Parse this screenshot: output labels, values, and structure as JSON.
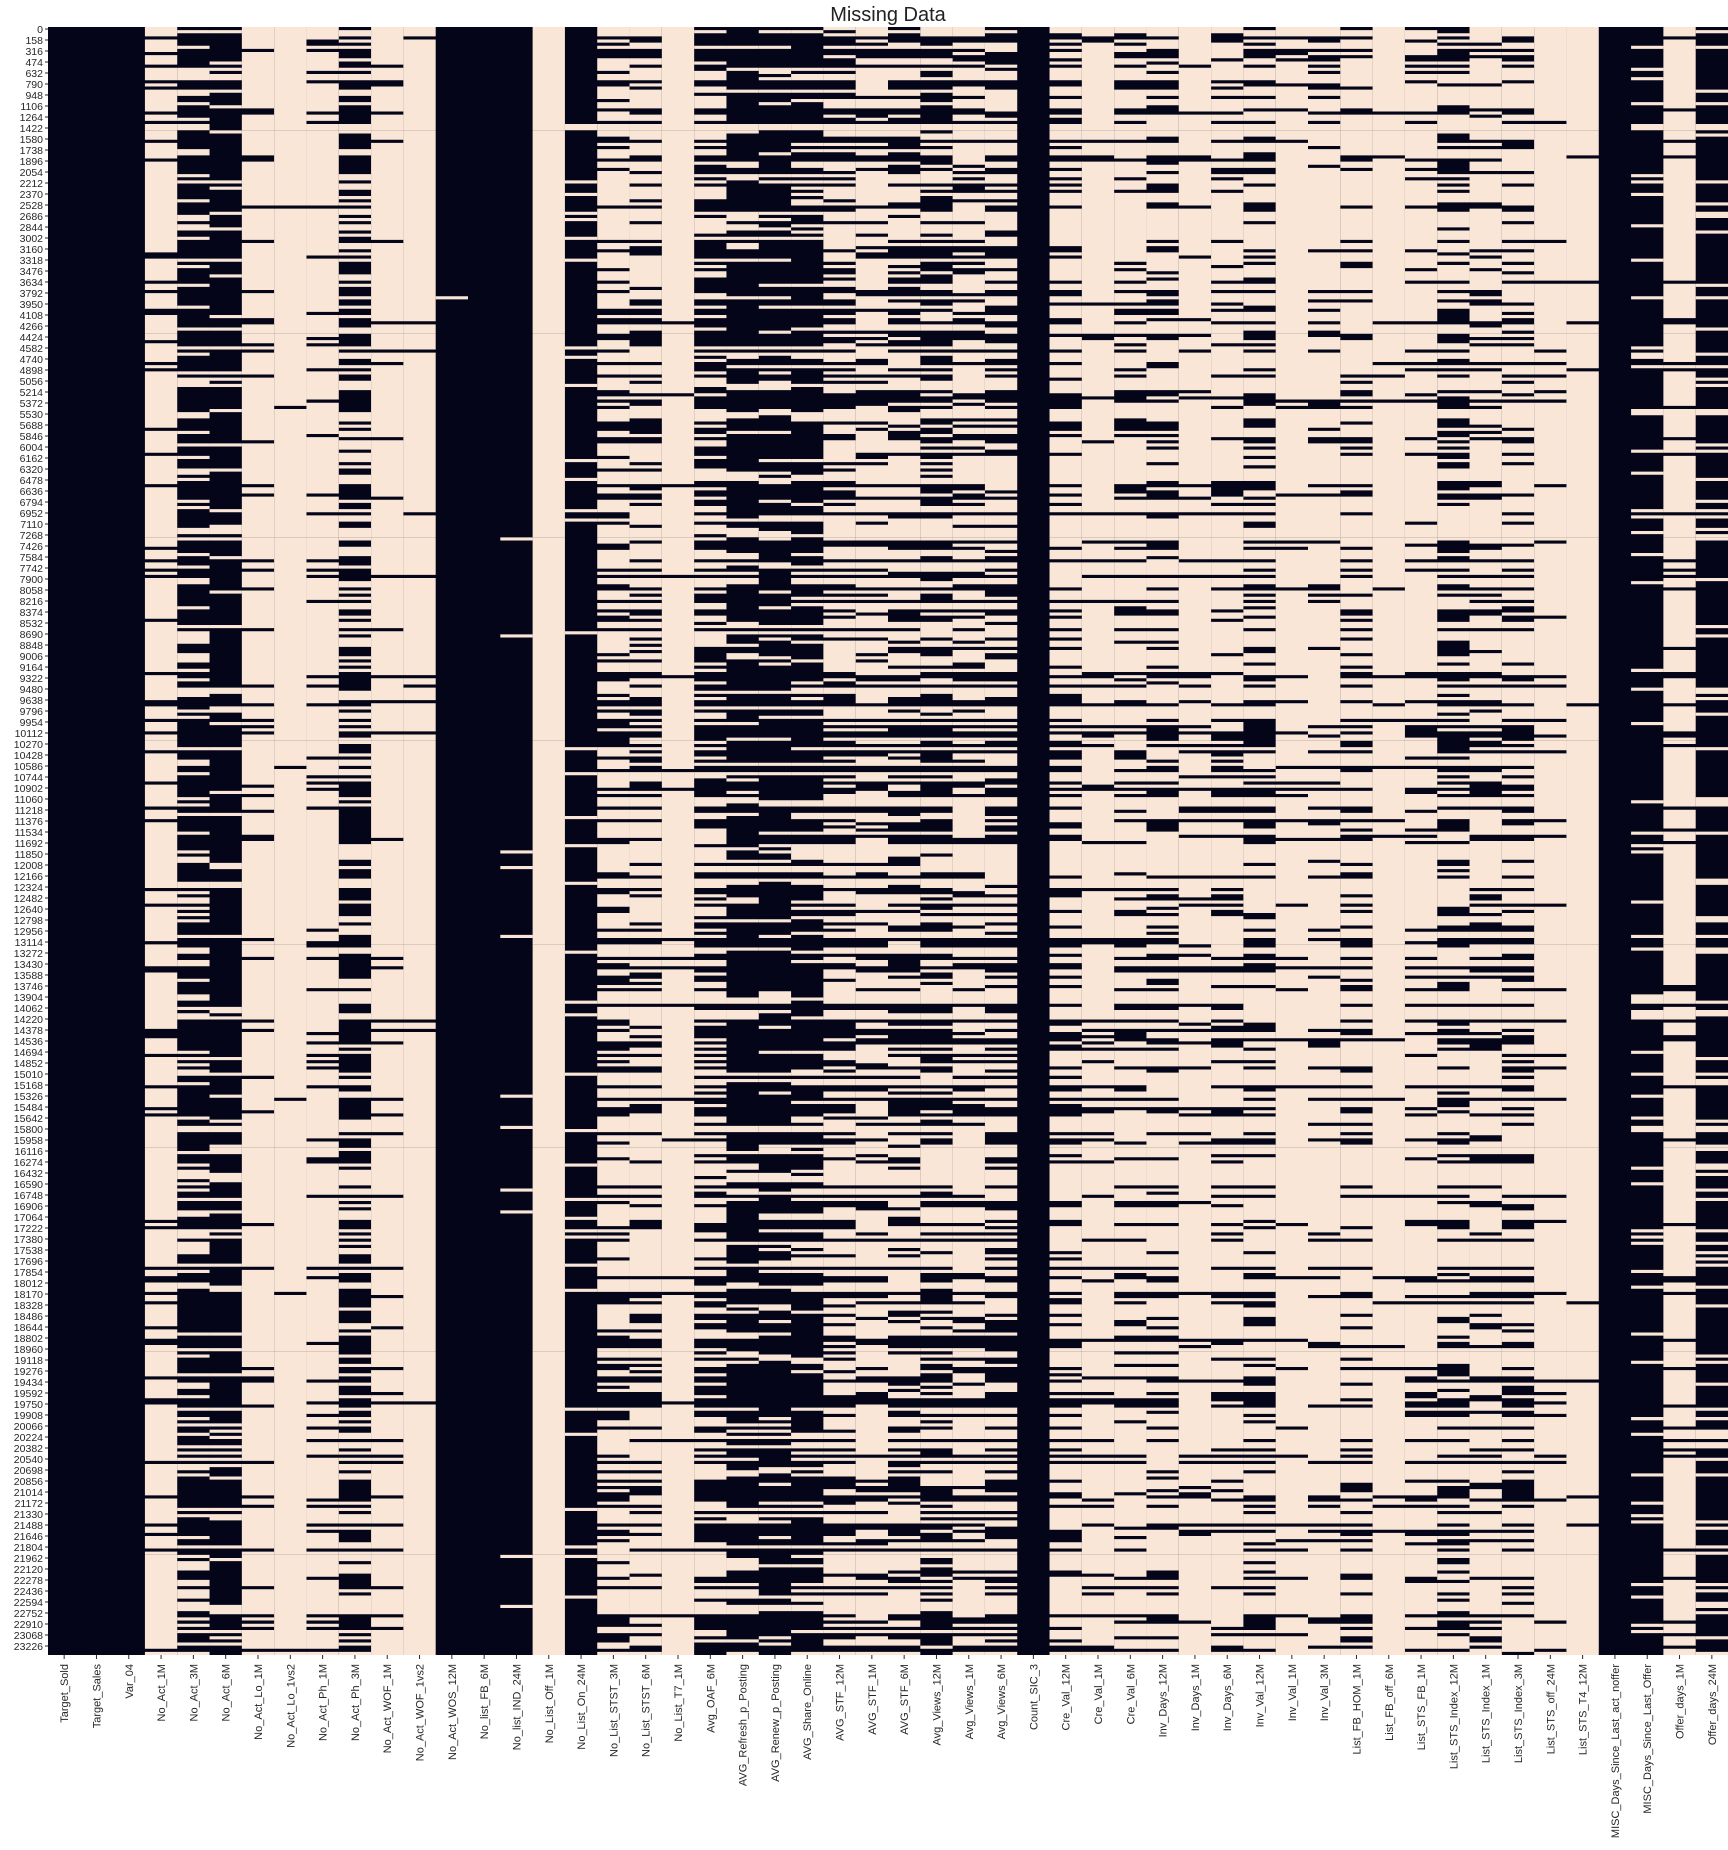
{
  "chart_data": {
    "type": "heatmap",
    "title": "Missing Data",
    "xlabel": "",
    "ylabel": "",
    "legend": "none",
    "grid": false,
    "colors": {
      "present": "#05051a",
      "missing": "#f9e6d7"
    },
    "y_tick_labels": [
      "0",
      "158",
      "316",
      "474",
      "632",
      "790",
      "948",
      "1106",
      "1264",
      "1422",
      "1580",
      "1738",
      "1896",
      "2054",
      "2212",
      "2370",
      "2528",
      "2686",
      "2844",
      "3002",
      "3160",
      "3318",
      "3476",
      "3634",
      "3792",
      "3950",
      "4108",
      "4266",
      "4424",
      "4582",
      "4740",
      "4898",
      "5056",
      "5214",
      "5372",
      "5530",
      "5688",
      "5846",
      "6004",
      "6162",
      "6320",
      "6478",
      "6636",
      "6794",
      "6952",
      "7110",
      "7268",
      "7426",
      "7584",
      "7742",
      "7900",
      "8058",
      "8216",
      "8374",
      "8532",
      "8690",
      "8848",
      "9006",
      "9164",
      "9322",
      "9480",
      "9638",
      "9796",
      "9954",
      "10112",
      "10270",
      "10428",
      "10586",
      "10744",
      "10902",
      "11060",
      "11218",
      "11376",
      "11534",
      "11692",
      "11850",
      "12008",
      "12166",
      "12324",
      "12482",
      "12640",
      "12798",
      "12956",
      "13114",
      "13272",
      "13430",
      "13588",
      "13746",
      "13904",
      "14062",
      "14220",
      "14378",
      "14536",
      "14694",
      "14852",
      "15010",
      "15168",
      "15326",
      "15484",
      "15642",
      "15800",
      "15958",
      "16116",
      "16274",
      "16432",
      "16590",
      "16748",
      "16906",
      "17064",
      "17222",
      "17380",
      "17538",
      "17696",
      "17854",
      "18012",
      "18170",
      "18328",
      "18486",
      "18644",
      "18802",
      "18960",
      "19118",
      "19276",
      "19434",
      "19592",
      "19750",
      "19908",
      "20066",
      "20224",
      "20382",
      "20540",
      "20698",
      "20856",
      "21014",
      "21172",
      "21330",
      "21488",
      "21646",
      "21804",
      "21962",
      "22120",
      "22278",
      "22436",
      "22594",
      "22752",
      "22910",
      "23068",
      "23226"
    ],
    "rows_estimated": 23300,
    "columns": [
      {
        "name": "Target_Sold",
        "missing_fraction": 0.0
      },
      {
        "name": "Target_Sales",
        "missing_fraction": 0.0
      },
      {
        "name": "Var_04",
        "missing_fraction": 0.0
      },
      {
        "name": "No_Act_1M",
        "missing_fraction": 0.75
      },
      {
        "name": "No_Act_3M",
        "missing_fraction": 0.4
      },
      {
        "name": "No_Act_6M",
        "missing_fraction": 0.3
      },
      {
        "name": "No_Act_Lo_1M",
        "missing_fraction": 0.8
      },
      {
        "name": "No_Act_Lo_1vs2",
        "missing_fraction": 0.9
      },
      {
        "name": "No_Act_Ph_1M",
        "missing_fraction": 0.75
      },
      {
        "name": "No_Act_Ph_3M",
        "missing_fraction": 0.45
      },
      {
        "name": "No_Act_WOF_1M",
        "missing_fraction": 0.8
      },
      {
        "name": "No_Act_WOF_1vs2",
        "missing_fraction": 0.9
      },
      {
        "name": "No_Act_WOS_12M",
        "missing_fraction": 0.05
      },
      {
        "name": "No_list_FB_6M",
        "missing_fraction": 0.0
      },
      {
        "name": "No_list_IND_24M",
        "missing_fraction": 0.1
      },
      {
        "name": "No_List_Off_1M",
        "missing_fraction": 0.97
      },
      {
        "name": "No_List_On_24M",
        "missing_fraction": 0.2
      },
      {
        "name": "No_List_STST_3M",
        "missing_fraction": 0.6
      },
      {
        "name": "No_List_STST_6M",
        "missing_fraction": 0.6
      },
      {
        "name": "No_List_T7_1M",
        "missing_fraction": 0.85
      },
      {
        "name": "Avg_OAF_6M",
        "missing_fraction": 0.5
      },
      {
        "name": "AVG_Refresh_p_Posting",
        "missing_fraction": 0.35
      },
      {
        "name": "AVG_Renew_p_Posting",
        "missing_fraction": 0.35
      },
      {
        "name": "AVG_Share_Online",
        "missing_fraction": 0.35
      },
      {
        "name": "AVG_STF_12M",
        "missing_fraction": 0.55
      },
      {
        "name": "AVG_STF_1M",
        "missing_fraction": 0.6
      },
      {
        "name": "AVG_STF_6M",
        "missing_fraction": 0.55
      },
      {
        "name": "Avg_Views_12M",
        "missing_fraction": 0.5
      },
      {
        "name": "Avg_Views_1M",
        "missing_fraction": 0.6
      },
      {
        "name": "Avg_Views_6M",
        "missing_fraction": 0.55
      },
      {
        "name": "Count_SIC_3",
        "missing_fraction": 0.02
      },
      {
        "name": "Cre_Val_12M",
        "missing_fraction": 0.6
      },
      {
        "name": "Cre_Val_1M",
        "missing_fraction": 0.75
      },
      {
        "name": "Cre_Val_6M",
        "missing_fraction": 0.65
      },
      {
        "name": "Inv_Days_12M",
        "missing_fraction": 0.6
      },
      {
        "name": "Inv_Days_1M",
        "missing_fraction": 0.75
      },
      {
        "name": "Inv_Days_6M",
        "missing_fraction": 0.65
      },
      {
        "name": "Inv_Val_12M",
        "missing_fraction": 0.6
      },
      {
        "name": "Inv_Val_1M",
        "missing_fraction": 0.8
      },
      {
        "name": "Inv_Val_3M",
        "missing_fraction": 0.7
      },
      {
        "name": "List_FB_HOM_1M",
        "missing_fraction": 0.65
      },
      {
        "name": "List_FB_off_6M",
        "missing_fraction": 0.85
      },
      {
        "name": "List_STS_FB_1M",
        "missing_fraction": 0.7
      },
      {
        "name": "List_STS_Index_12M",
        "missing_fraction": 0.55
      },
      {
        "name": "List_STS_Index_1M",
        "missing_fraction": 0.65
      },
      {
        "name": "List_STS_Index_3M",
        "missing_fraction": 0.6
      },
      {
        "name": "List_STS_off_24M",
        "missing_fraction": 0.8
      },
      {
        "name": "List_STS_T4_12M",
        "missing_fraction": 0.9
      },
      {
        "name": "MISC_Days_Since_Last_act_noffer",
        "missing_fraction": 0.0
      },
      {
        "name": "MISC_Days_Since_Last_Offer",
        "missing_fraction": 0.25
      },
      {
        "name": "Offer_days_1M",
        "missing_fraction": 0.8
      },
      {
        "name": "Offer_days_24M",
        "missing_fraction": 0.3
      }
    ]
  }
}
